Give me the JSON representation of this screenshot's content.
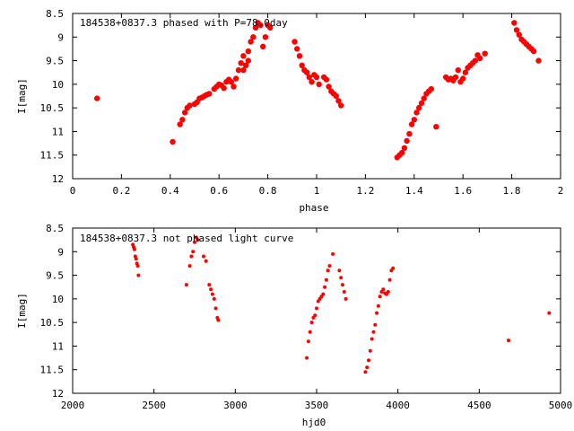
{
  "colors": {
    "points": "#ff0000",
    "axes": "#000000",
    "background": "#ffffff"
  },
  "chart_data": [
    {
      "type": "scatter",
      "title": "184538+0837.3 phased with P=78.0day",
      "xlabel": "phase",
      "ylabel": "I[mag]",
      "xlim": [
        0,
        2
      ],
      "ylim": [
        8.5,
        12
      ],
      "y_inverted": true,
      "grid": false,
      "xticks": [
        0,
        0.2,
        0.4,
        0.6,
        0.8,
        1,
        1.2,
        1.4,
        1.6,
        1.8,
        2
      ],
      "xtick_labels": [
        "0",
        "0.2",
        "0.4",
        "0.6",
        "0.8",
        "1",
        "1.2",
        "1.4",
        "1.6",
        "1.8",
        "2"
      ],
      "yticks": [
        8.5,
        9,
        9.5,
        10,
        10.5,
        11,
        11.5,
        12
      ],
      "ytick_labels": [
        "8.5",
        "9",
        "9.5",
        "10",
        "10.5",
        "11",
        "11.5",
        "12"
      ],
      "marker": "filled-circle-large",
      "points": [
        [
          0.1,
          10.3
        ],
        [
          0.41,
          11.22
        ],
        [
          0.44,
          10.85
        ],
        [
          0.45,
          10.75
        ],
        [
          0.46,
          10.6
        ],
        [
          0.47,
          10.5
        ],
        [
          0.48,
          10.45
        ],
        [
          0.5,
          10.42
        ],
        [
          0.51,
          10.38
        ],
        [
          0.52,
          10.3
        ],
        [
          0.53,
          10.28
        ],
        [
          0.54,
          10.25
        ],
        [
          0.55,
          10.22
        ],
        [
          0.56,
          10.2
        ],
        [
          0.58,
          10.1
        ],
        [
          0.59,
          10.05
        ],
        [
          0.6,
          10.0
        ],
        [
          0.61,
          10.02
        ],
        [
          0.62,
          10.08
        ],
        [
          0.63,
          9.95
        ],
        [
          0.64,
          9.9
        ],
        [
          0.65,
          9.95
        ],
        [
          0.66,
          10.05
        ],
        [
          0.67,
          9.88
        ],
        [
          0.68,
          9.7
        ],
        [
          0.69,
          9.55
        ],
        [
          0.7,
          9.4
        ],
        [
          0.7,
          9.7
        ],
        [
          0.71,
          9.6
        ],
        [
          0.72,
          9.5
        ],
        [
          0.72,
          9.3
        ],
        [
          0.73,
          9.1
        ],
        [
          0.74,
          9.0
        ],
        [
          0.75,
          8.8
        ],
        [
          0.76,
          8.7
        ],
        [
          0.77,
          8.75
        ],
        [
          0.78,
          9.2
        ],
        [
          0.79,
          9.0
        ],
        [
          0.8,
          8.75
        ],
        [
          0.81,
          8.8
        ],
        [
          0.91,
          9.1
        ],
        [
          0.92,
          9.25
        ],
        [
          0.93,
          9.4
        ],
        [
          0.94,
          9.6
        ],
        [
          0.95,
          9.7
        ],
        [
          0.96,
          9.75
        ],
        [
          0.97,
          9.85
        ],
        [
          0.98,
          9.95
        ],
        [
          0.99,
          9.8
        ],
        [
          1.0,
          9.85
        ],
        [
          1.01,
          10.0
        ],
        [
          1.03,
          9.85
        ],
        [
          1.04,
          9.9
        ],
        [
          1.05,
          10.05
        ],
        [
          1.06,
          10.15
        ],
        [
          1.07,
          10.2
        ],
        [
          1.08,
          10.25
        ],
        [
          1.09,
          10.35
        ],
        [
          1.1,
          10.45
        ],
        [
          1.33,
          11.55
        ],
        [
          1.34,
          11.5
        ],
        [
          1.35,
          11.45
        ],
        [
          1.36,
          11.35
        ],
        [
          1.37,
          11.2
        ],
        [
          1.38,
          11.05
        ],
        [
          1.39,
          10.85
        ],
        [
          1.4,
          10.75
        ],
        [
          1.41,
          10.6
        ],
        [
          1.42,
          10.5
        ],
        [
          1.43,
          10.4
        ],
        [
          1.44,
          10.3
        ],
        [
          1.45,
          10.2
        ],
        [
          1.46,
          10.15
        ],
        [
          1.47,
          10.1
        ],
        [
          1.49,
          10.9
        ],
        [
          1.53,
          9.85
        ],
        [
          1.54,
          9.9
        ],
        [
          1.55,
          9.88
        ],
        [
          1.56,
          9.92
        ],
        [
          1.57,
          9.85
        ],
        [
          1.58,
          9.7
        ],
        [
          1.59,
          9.95
        ],
        [
          1.6,
          9.88
        ],
        [
          1.61,
          9.75
        ],
        [
          1.62,
          9.65
        ],
        [
          1.63,
          9.6
        ],
        [
          1.64,
          9.55
        ],
        [
          1.65,
          9.5
        ],
        [
          1.66,
          9.38
        ],
        [
          1.67,
          9.45
        ],
        [
          1.69,
          9.35
        ],
        [
          1.81,
          8.7
        ],
        [
          1.82,
          8.85
        ],
        [
          1.83,
          8.95
        ],
        [
          1.84,
          9.05
        ],
        [
          1.85,
          9.1
        ],
        [
          1.86,
          9.15
        ],
        [
          1.87,
          9.2
        ],
        [
          1.88,
          9.25
        ],
        [
          1.89,
          9.3
        ],
        [
          1.91,
          9.5
        ]
      ]
    },
    {
      "type": "scatter",
      "title": "184538+0837.3 not phased light curve",
      "xlabel": "hjd0",
      "ylabel": "I[mag]",
      "xlim": [
        2000,
        5000
      ],
      "ylim": [
        8.5,
        12
      ],
      "y_inverted": true,
      "grid": false,
      "xticks": [
        2000,
        2500,
        3000,
        3500,
        4000,
        4500,
        5000
      ],
      "xtick_labels": [
        "2000",
        "2500",
        "3000",
        "3500",
        "4000",
        "4500",
        "5000"
      ],
      "yticks": [
        8.5,
        9,
        9.5,
        10,
        10.5,
        11,
        11.5,
        12
      ],
      "ytick_labels": [
        "8.5",
        "9",
        "9.5",
        "10",
        "10.5",
        "11",
        "11.5",
        "12"
      ],
      "marker": "filled-circle-small",
      "points": [
        [
          2370,
          8.85
        ],
        [
          2375,
          8.9
        ],
        [
          2380,
          8.95
        ],
        [
          2385,
          9.1
        ],
        [
          2390,
          9.15
        ],
        [
          2395,
          9.25
        ],
        [
          2400,
          9.3
        ],
        [
          2405,
          9.5
        ],
        [
          2700,
          9.7
        ],
        [
          2720,
          9.3
        ],
        [
          2730,
          9.1
        ],
        [
          2740,
          9.0
        ],
        [
          2750,
          8.8
        ],
        [
          2760,
          8.7
        ],
        [
          2770,
          8.75
        ],
        [
          2805,
          9.1
        ],
        [
          2820,
          9.2
        ],
        [
          2840,
          9.7
        ],
        [
          2850,
          9.8
        ],
        [
          2860,
          9.9
        ],
        [
          2870,
          10.0
        ],
        [
          2880,
          10.2
        ],
        [
          2890,
          10.4
        ],
        [
          2895,
          10.45
        ],
        [
          3440,
          11.25
        ],
        [
          3450,
          10.9
        ],
        [
          3460,
          10.7
        ],
        [
          3470,
          10.5
        ],
        [
          3480,
          10.4
        ],
        [
          3490,
          10.35
        ],
        [
          3500,
          10.2
        ],
        [
          3510,
          10.05
        ],
        [
          3520,
          10.0
        ],
        [
          3530,
          9.95
        ],
        [
          3540,
          9.9
        ],
        [
          3550,
          9.75
        ],
        [
          3560,
          9.6
        ],
        [
          3570,
          9.4
        ],
        [
          3580,
          9.3
        ],
        [
          3600,
          9.05
        ],
        [
          3640,
          9.4
        ],
        [
          3650,
          9.55
        ],
        [
          3660,
          9.7
        ],
        [
          3670,
          9.85
        ],
        [
          3680,
          10.0
        ],
        [
          3800,
          11.55
        ],
        [
          3810,
          11.45
        ],
        [
          3820,
          11.3
        ],
        [
          3830,
          11.1
        ],
        [
          3840,
          10.85
        ],
        [
          3850,
          10.7
        ],
        [
          3860,
          10.55
        ],
        [
          3870,
          10.3
        ],
        [
          3880,
          10.15
        ],
        [
          3890,
          9.95
        ],
        [
          3900,
          9.85
        ],
        [
          3910,
          9.8
        ],
        [
          3920,
          9.88
        ],
        [
          3930,
          9.9
        ],
        [
          3940,
          9.85
        ],
        [
          3950,
          9.6
        ],
        [
          3960,
          9.4
        ],
        [
          3970,
          9.35
        ],
        [
          4680,
          10.88
        ],
        [
          4930,
          10.3
        ]
      ]
    }
  ]
}
